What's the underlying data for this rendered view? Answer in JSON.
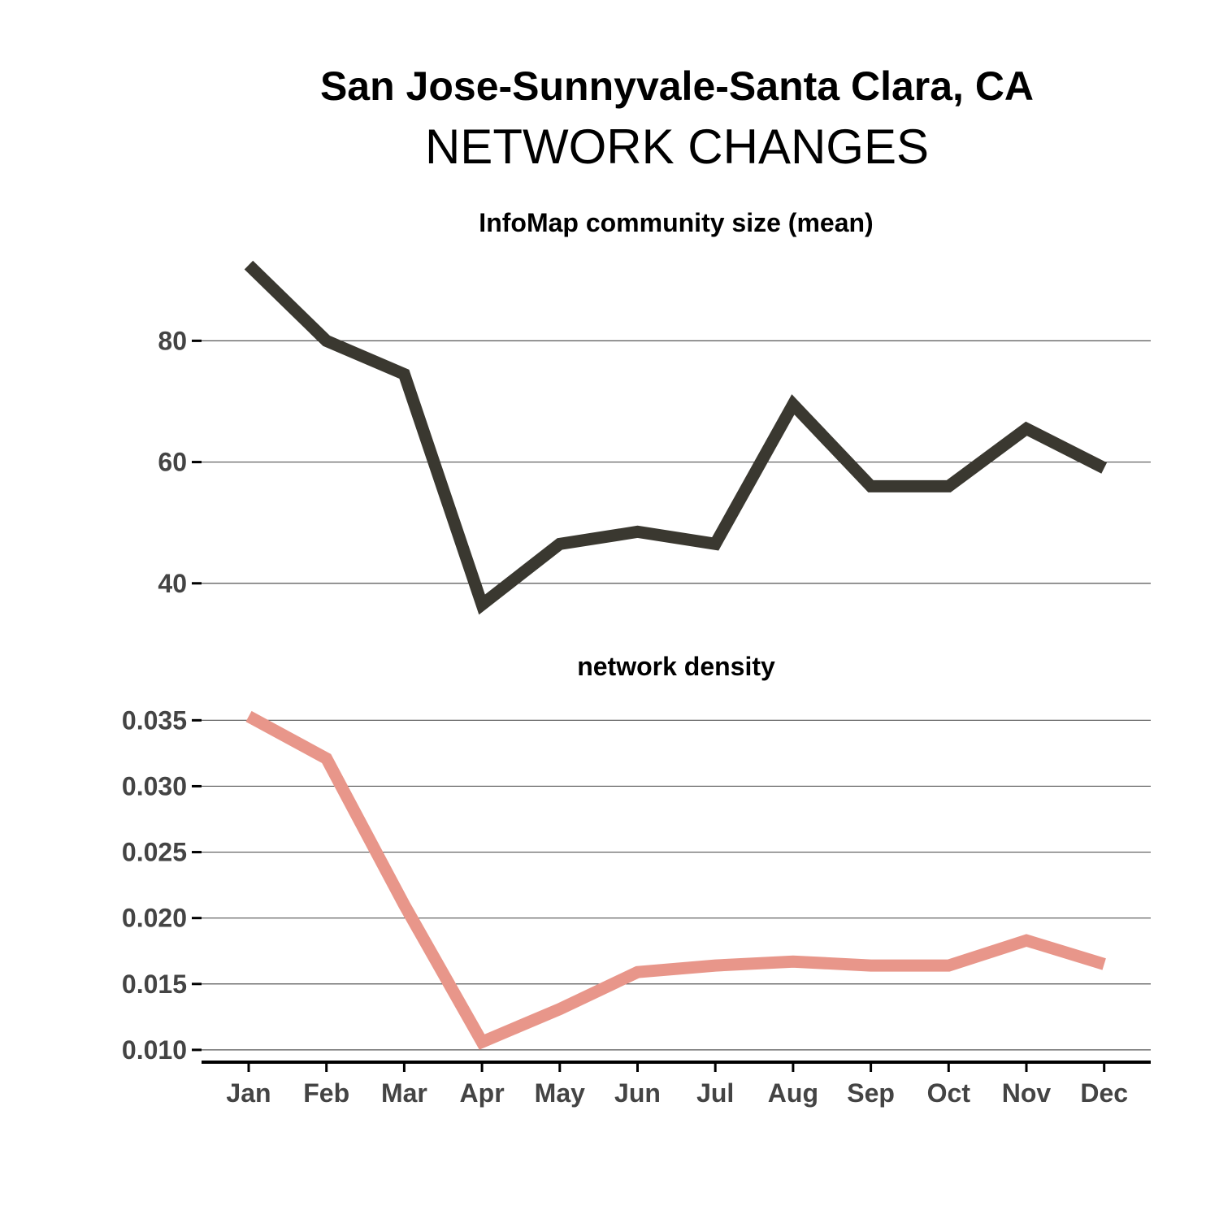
{
  "title": "San Jose-Sunnyvale-Santa Clara, CA",
  "subtitle": "NETWORK CHANGES",
  "chart_data": [
    {
      "type": "line",
      "title": "InfoMap community size (mean)",
      "categories": [
        "Jan",
        "Feb",
        "Mar",
        "Apr",
        "May",
        "Jun",
        "Jul",
        "Aug",
        "Sep",
        "Oct",
        "Nov",
        "Dec"
      ],
      "series": [
        {
          "values": [
            92.5,
            80,
            74.5,
            36.5,
            46.5,
            48.5,
            46.5,
            69.5,
            56,
            56,
            65.5,
            59
          ],
          "color": "#3a3830"
        }
      ],
      "yticks": [
        40,
        60,
        80
      ],
      "ytick_labels": [
        "40",
        "60",
        "80"
      ],
      "ylim": [
        33,
        96
      ],
      "grid": true,
      "legend": "none"
    },
    {
      "type": "line",
      "title": "network density",
      "categories": [
        "Jan",
        "Feb",
        "Mar",
        "Apr",
        "May",
        "Jun",
        "Jul",
        "Aug",
        "Sep",
        "Oct",
        "Nov",
        "Dec"
      ],
      "series": [
        {
          "values": [
            0.0353,
            0.0321,
            0.021,
            0.0106,
            0.0131,
            0.0159,
            0.0164,
            0.0167,
            0.0164,
            0.0164,
            0.0183,
            0.0165
          ],
          "color": "#e8968a"
        }
      ],
      "yticks": [
        0.01,
        0.015,
        0.02,
        0.025,
        0.03,
        0.035
      ],
      "ytick_labels": [
        "0.010",
        "0.015",
        "0.020",
        "0.025",
        "0.030",
        "0.035"
      ],
      "ylim": [
        0.0095,
        0.0365
      ],
      "grid": true,
      "legend": "none"
    }
  ],
  "colors": {
    "community_line": "#3a3830",
    "density_line": "#e8968a",
    "tick_text": "#444444"
  }
}
